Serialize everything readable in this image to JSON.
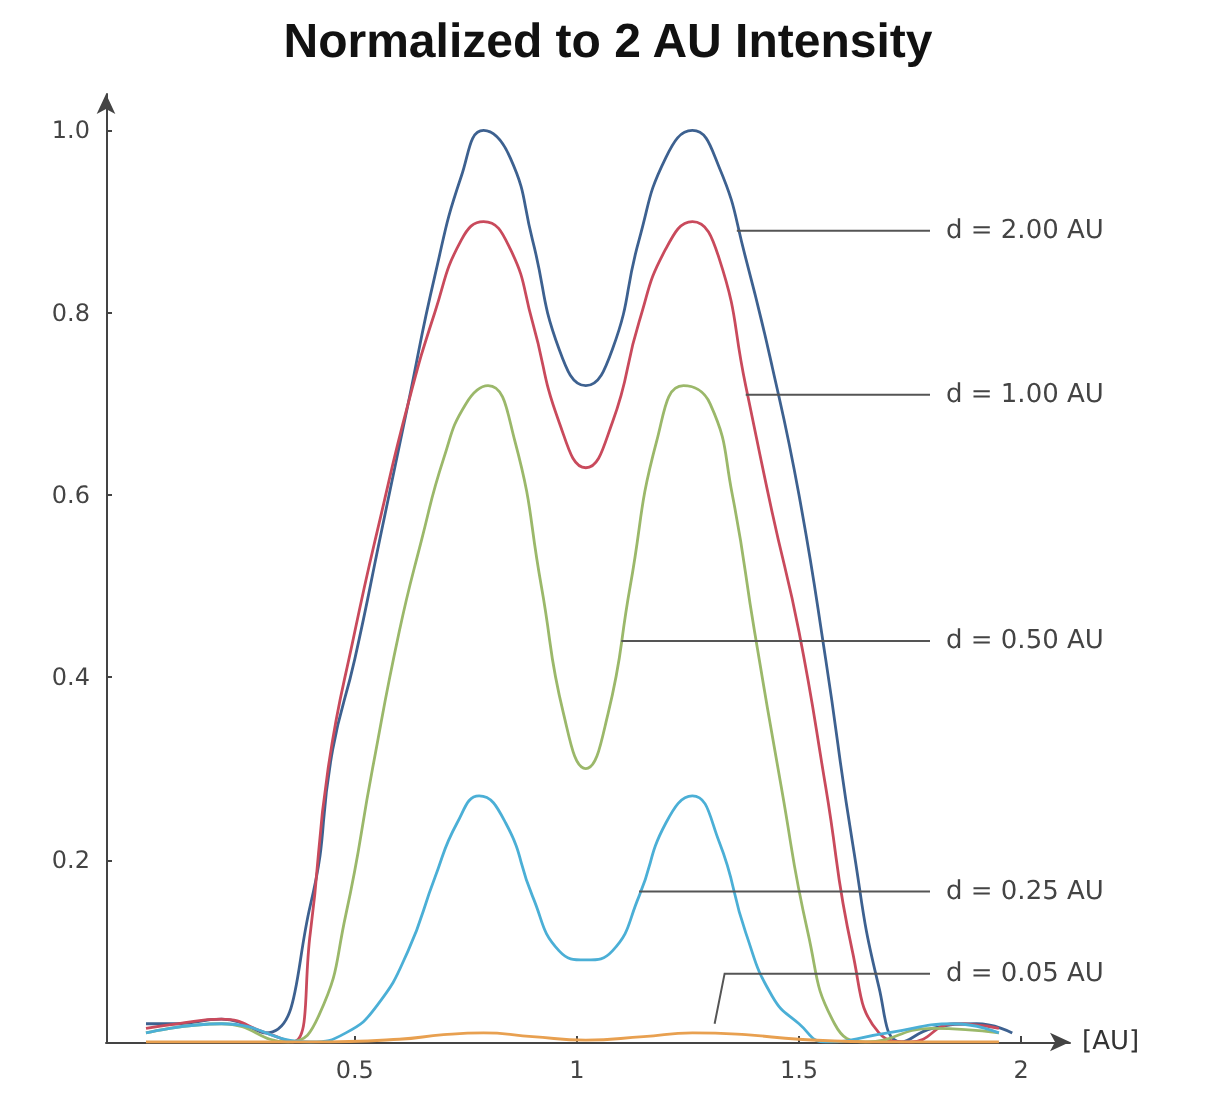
{
  "chart_data": {
    "type": "line",
    "title": "Normalized to 2 AU Intensity",
    "xlabel": "[AU]",
    "xlim": [
      -0.06,
      2.11
    ],
    "xticks": [
      0.5,
      1,
      1.5,
      2
    ],
    "ylim": [
      0,
      1.04
    ],
    "yticks": [
      {
        "value": 0,
        "label": null
      },
      0.2,
      0.4,
      0.6,
      0.8,
      {
        "value": 1,
        "label": "1.0"
      }
    ],
    "grid": false,
    "marker": "none",
    "line_style": "solid",
    "series": [
      {
        "color": "#3d6190",
        "x": [
          0.03,
          0.1,
          0.2,
          0.3,
          0.4,
          0.45,
          0.5,
          0.56,
          0.62,
          0.68,
          0.74,
          0.79,
          0.85,
          0.9,
          0.96,
          1.02,
          1.08,
          1.14,
          1.2,
          1.26,
          1.32,
          1.38,
          1.44,
          1.5,
          1.56,
          1.62,
          1.68,
          1.73,
          1.8,
          1.9,
          1.98
        ],
        "values": [
          0.02,
          0.02,
          0.025,
          0.01,
          0.15,
          0.32,
          0.42,
          0.56,
          0.7,
          0.84,
          0.95,
          1.0,
          0.97,
          0.88,
          0.76,
          0.72,
          0.76,
          0.88,
          0.97,
          1.0,
          0.96,
          0.86,
          0.74,
          0.6,
          0.42,
          0.22,
          0.06,
          0,
          0.015,
          0.02,
          0.01
        ]
      },
      {
        "color": "#c94a5c",
        "x": [
          0.03,
          0.1,
          0.2,
          0.3,
          0.36,
          0.4,
          0.44,
          0.5,
          0.56,
          0.62,
          0.68,
          0.74,
          0.79,
          0.85,
          0.9,
          0.96,
          1.02,
          1.08,
          1.14,
          1.2,
          1.26,
          1.32,
          1.38,
          1.44,
          1.5,
          1.56,
          1.62,
          1.68,
          1.75,
          1.85,
          1.95
        ],
        "values": [
          0.015,
          0.02,
          0.025,
          0.01,
          0.0,
          0.12,
          0.3,
          0.45,
          0.58,
          0.7,
          0.8,
          0.88,
          0.9,
          0.87,
          0.79,
          0.68,
          0.63,
          0.68,
          0.79,
          0.87,
          0.9,
          0.86,
          0.72,
          0.58,
          0.45,
          0.28,
          0.1,
          0.01,
          0,
          0.02,
          0.015
        ]
      },
      {
        "color": "#9bb86a",
        "x": [
          0.03,
          0.2,
          0.35,
          0.42,
          0.48,
          0.54,
          0.6,
          0.65,
          0.7,
          0.75,
          0.8,
          0.86,
          0.92,
          0.97,
          1.02,
          1.07,
          1.12,
          1.18,
          1.24,
          1.3,
          1.35,
          1.4,
          1.46,
          1.52,
          1.58,
          1.65,
          1.8,
          1.95
        ],
        "values": [
          0.01,
          0.02,
          0.0,
          0.03,
          0.14,
          0.3,
          0.45,
          0.55,
          0.64,
          0.7,
          0.72,
          0.66,
          0.5,
          0.36,
          0.3,
          0.36,
          0.5,
          0.66,
          0.72,
          0.7,
          0.6,
          0.45,
          0.28,
          0.12,
          0.02,
          0,
          0.015,
          0.01
        ]
      },
      {
        "color": "#4bafd6",
        "x": [
          0.03,
          0.2,
          0.4,
          0.48,
          0.55,
          0.62,
          0.68,
          0.73,
          0.78,
          0.84,
          0.9,
          0.96,
          1.02,
          1.08,
          1.14,
          1.2,
          1.26,
          1.32,
          1.38,
          1.44,
          1.5,
          1.56,
          1.7,
          1.85,
          1.95
        ],
        "values": [
          0.01,
          0.02,
          0.0,
          0.01,
          0.04,
          0.1,
          0.18,
          0.24,
          0.27,
          0.24,
          0.16,
          0.1,
          0.09,
          0.1,
          0.16,
          0.24,
          0.27,
          0.22,
          0.12,
          0.05,
          0.02,
          0,
          0.01,
          0.02,
          0.01
        ]
      },
      {
        "color": "#e8a050",
        "x": [
          0.03,
          0.4,
          0.6,
          0.7,
          0.79,
          0.9,
          1.02,
          1.15,
          1.26,
          1.38,
          1.5,
          1.7,
          1.95
        ],
        "values": [
          0,
          0,
          0.003,
          0.008,
          0.01,
          0.006,
          0.002,
          0.006,
          0.01,
          0.008,
          0.003,
          0,
          0
        ]
      }
    ],
    "annotations": [
      {
        "text": "d = 2.00 AU",
        "x": 1.36,
        "y": 0.89
      },
      {
        "text": "d = 1.00 AU",
        "x": 1.38,
        "y": 0.71
      },
      {
        "text": "d = 0.50 AU",
        "x": 1.1,
        "y": 0.44
      },
      {
        "text": "d = 0.25 AU",
        "x": 1.14,
        "y": 0.165
      },
      {
        "text": "d = 0.05 AU",
        "x": 1.31,
        "y": 0.02
      }
    ]
  }
}
